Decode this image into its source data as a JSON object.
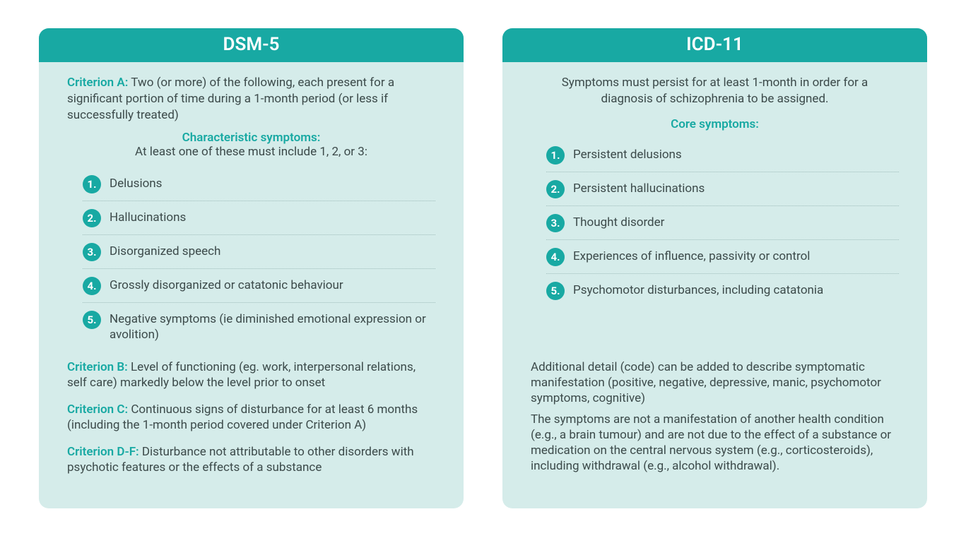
{
  "colors": {
    "header_bg": "#18a9a3",
    "panel_bg": "#d5ecea",
    "accent": "#18a9a3",
    "body_text": "#3c4a4a",
    "badge_bg": "#18a9a3",
    "badge_text": "#ffffff"
  },
  "typography": {
    "header_fontsize": 26,
    "body_fontsize": 17,
    "badge_fontsize": 15
  },
  "layout": {
    "panel_gap": 55,
    "panel_radius": 14
  },
  "left": {
    "title": "DSM-5",
    "criterionA": {
      "label": "Criterion A:",
      "text": " Two (or more) of the following, each present for a significant portion of time during a 1-month period (or less if successfully treated)"
    },
    "subhead": "Characteristic symptoms:",
    "subnote": "At least one of these must include 1, 2, or 3:",
    "symptoms": [
      {
        "n": "1.",
        "text": "Delusions"
      },
      {
        "n": "2.",
        "text": "Hallucinations"
      },
      {
        "n": "3.",
        "text": "Disorganized speech"
      },
      {
        "n": "4.",
        "text": "Grossly disorganized or catatonic behaviour"
      },
      {
        "n": "5.",
        "text": "Negative symptoms (ie diminished emotional expression or avolition)"
      }
    ],
    "criteria": [
      {
        "label": "Criterion B:",
        "text": " Level of functioning (eg. work, interpersonal relations, self care) markedly below the level prior to onset"
      },
      {
        "label": "Criterion C:",
        "text": " Continuous signs of disturbance for at least 6 months (including the 1-month period covered under Criterion A)"
      },
      {
        "label": "Criterion D-F:",
        "text": " Disturbance not attributable to other disorders with psychotic features or the effects of a substance"
      }
    ]
  },
  "right": {
    "title": "ICD-11",
    "intro": "Symptoms must persist for at least 1-month in order for a diagnosis of schizophrenia to be assigned.",
    "subhead": "Core symptoms:",
    "symptoms": [
      {
        "n": "1.",
        "text": "Persistent delusions"
      },
      {
        "n": "2.",
        "text": "Persistent hallucinations"
      },
      {
        "n": "3.",
        "text": "Thought disorder"
      },
      {
        "n": "4.",
        "text": "Experiences of influence, passivity or control"
      },
      {
        "n": "5.",
        "text": "Psychomotor disturbances, including catatonia"
      }
    ],
    "notes": [
      "Additional detail (code) can be added to describe symptomatic manifestation (positive, negative, depressive, manic, psychomotor symptoms, cognitive)",
      "The symptoms are not a manifestation of another health condition (e.g., a brain tumour) and are not due to the effect of a substance or medication on the central nervous system (e.g., corticosteroids), including withdrawal (e.g., alcohol withdrawal)."
    ]
  }
}
